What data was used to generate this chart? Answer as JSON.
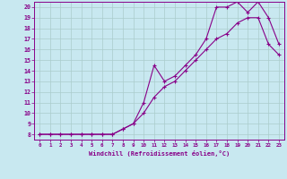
{
  "xlabel": "Windchill (Refroidissement éolien,°C)",
  "xlim": [
    -0.5,
    23.5
  ],
  "ylim": [
    7.5,
    20.5
  ],
  "yticks": [
    8,
    9,
    10,
    11,
    12,
    13,
    14,
    15,
    16,
    17,
    18,
    19,
    20
  ],
  "xticks": [
    0,
    1,
    2,
    3,
    4,
    5,
    6,
    7,
    8,
    9,
    10,
    11,
    12,
    13,
    14,
    15,
    16,
    17,
    18,
    19,
    20,
    21,
    22,
    23
  ],
  "line_color": "#880088",
  "bg_color": "#c8e8f0",
  "grid_color": "#b0d0e0",
  "curve1_x": [
    0,
    1,
    2,
    3,
    4,
    5,
    6,
    7,
    8,
    9,
    10,
    11,
    12,
    13,
    14,
    15,
    16,
    17,
    18,
    19,
    20,
    21,
    22,
    23
  ],
  "curve1_y": [
    8.0,
    8.0,
    8.0,
    8.0,
    8.0,
    8.0,
    8.0,
    8.0,
    8.5,
    9.0,
    11.0,
    14.5,
    13.0,
    13.5,
    14.5,
    15.5,
    17.0,
    20.0,
    20.0,
    20.5,
    19.5,
    20.5,
    19.0,
    16.5
  ],
  "curve2_x": [
    0,
    1,
    2,
    3,
    4,
    5,
    6,
    7,
    8,
    9,
    10,
    11,
    12,
    13,
    14,
    15,
    16,
    17,
    18,
    19,
    20,
    21,
    22,
    23
  ],
  "curve2_y": [
    8.0,
    8.0,
    8.0,
    8.0,
    8.0,
    8.0,
    8.0,
    8.0,
    8.5,
    9.0,
    10.0,
    11.5,
    12.5,
    13.0,
    14.0,
    15.0,
    16.0,
    17.0,
    17.5,
    18.5,
    19.0,
    19.0,
    16.5,
    15.5
  ]
}
